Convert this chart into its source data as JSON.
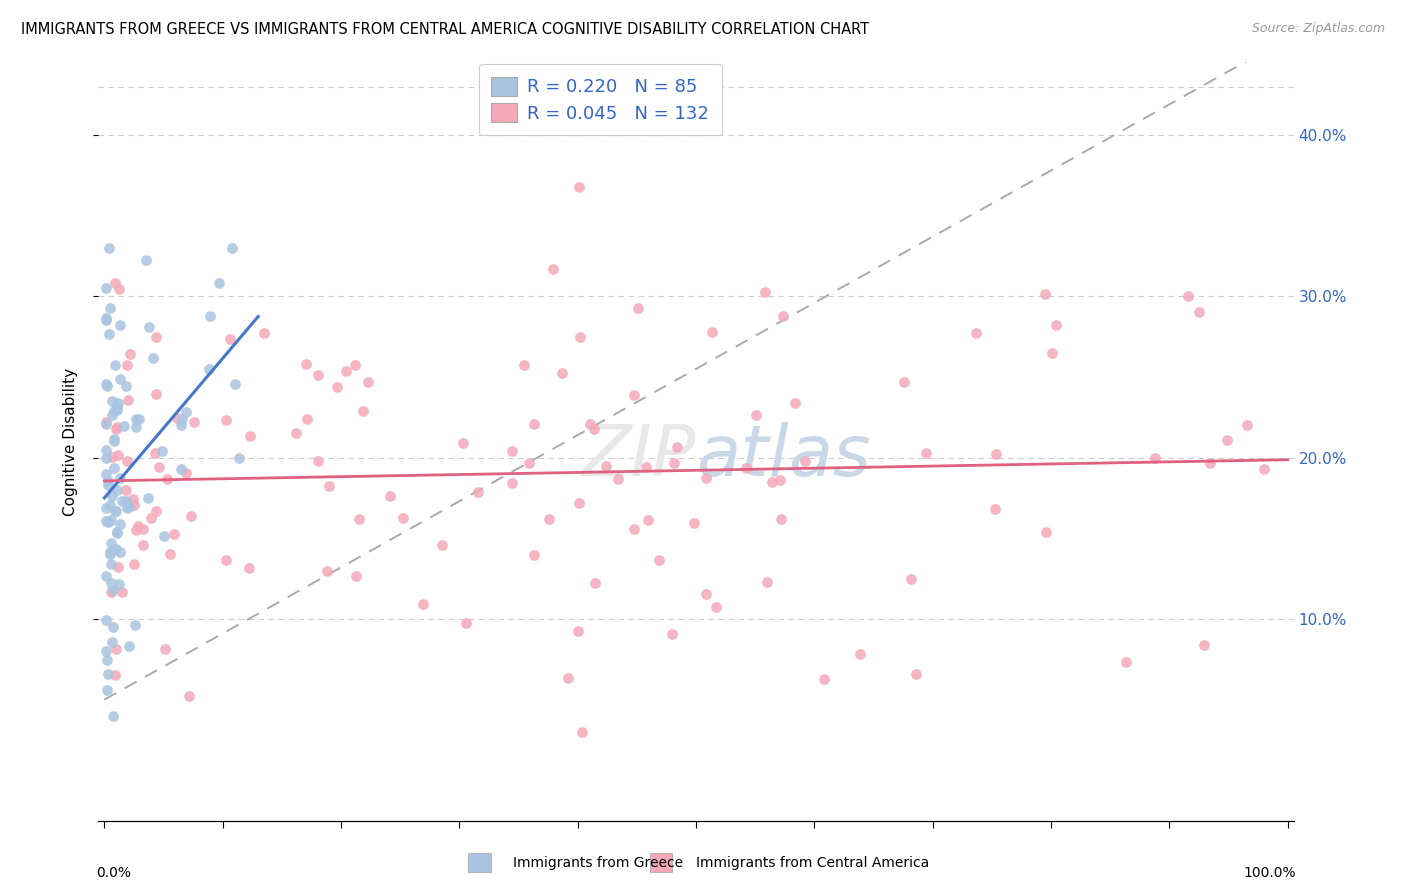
{
  "title": "IMMIGRANTS FROM GREECE VS IMMIGRANTS FROM CENTRAL AMERICA COGNITIVE DISABILITY CORRELATION CHART",
  "source": "Source: ZipAtlas.com",
  "ylabel": "Cognitive Disability",
  "ytick_values": [
    0.1,
    0.2,
    0.3,
    0.4
  ],
  "legend1_label": "Immigrants from Greece",
  "legend2_label": "Immigrants from Central America",
  "r1": 0.22,
  "n1": 85,
  "r2": 0.045,
  "n2": 132,
  "color1": "#a8c4e0",
  "color2": "#f4a8b8",
  "trendline1_color": "#4477cc",
  "trendline2_color": "#e06080",
  "trendline_dashed_color": "#aaaaaa",
  "background_color": "#ffffff"
}
